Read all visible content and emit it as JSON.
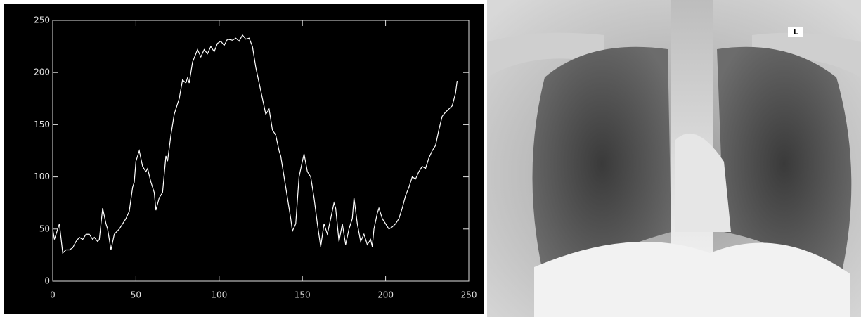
{
  "chart_data": {
    "type": "line",
    "x": [
      0,
      1,
      3,
      4,
      6,
      8,
      10,
      12,
      14,
      16,
      18,
      20,
      22,
      24,
      25,
      27,
      28,
      30,
      32,
      33,
      35,
      37,
      40,
      42,
      44,
      46,
      48,
      49,
      50,
      52,
      54,
      56,
      57,
      59,
      61,
      62,
      64,
      66,
      68,
      69,
      71,
      73,
      76,
      78,
      80,
      81,
      82,
      84,
      87,
      89,
      91,
      93,
      95,
      97,
      99,
      101,
      103,
      105,
      108,
      110,
      112,
      114,
      116,
      118,
      120,
      122,
      124,
      126,
      128,
      130,
      132,
      134,
      136,
      137,
      139,
      141,
      143,
      144,
      146,
      148,
      150,
      151,
      153,
      155,
      157,
      159,
      161,
      163,
      165,
      167,
      169,
      170,
      172,
      174,
      176,
      178,
      180,
      181,
      183,
      185,
      187,
      189,
      191,
      192,
      193,
      195,
      196,
      198,
      200,
      202,
      204,
      206,
      208,
      210,
      212,
      214,
      216,
      218,
      220,
      222,
      224,
      226,
      228,
      230,
      232,
      234,
      236,
      238,
      240,
      242,
      243
    ],
    "series": [
      {
        "color": "#ffffff",
        "values": [
          50,
          40,
          50,
          55,
          27,
          30,
          30,
          32,
          38,
          42,
          40,
          45,
          45,
          40,
          42,
          38,
          40,
          70,
          55,
          50,
          30,
          45,
          50,
          55,
          60,
          67,
          90,
          95,
          115,
          125,
          110,
          105,
          108,
          95,
          85,
          68,
          80,
          85,
          120,
          115,
          140,
          160,
          175,
          193,
          190,
          195,
          190,
          210,
          222,
          215,
          222,
          218,
          225,
          220,
          228,
          230,
          226,
          232,
          231,
          233,
          230,
          236,
          232,
          233,
          225,
          205,
          190,
          175,
          160,
          165,
          145,
          140,
          125,
          120,
          100,
          80,
          60,
          48,
          55,
          100,
          115,
          122,
          105,
          100,
          80,
          55,
          33,
          55,
          45,
          60,
          75,
          70,
          38,
          55,
          35,
          50,
          60,
          80,
          55,
          38,
          45,
          35,
          40,
          33,
          50,
          65,
          70,
          60,
          55,
          50,
          52,
          55,
          60,
          70,
          82,
          90,
          100,
          98,
          105,
          110,
          108,
          118,
          125,
          130,
          145,
          158,
          162,
          165,
          168,
          180,
          192
        ]
      }
    ],
    "xlim": [
      0,
      250
    ],
    "ylim": [
      0,
      250
    ],
    "xticks": [
      0,
      50,
      100,
      150,
      200,
      250
    ],
    "yticks": [
      0,
      50,
      100,
      150,
      200,
      250
    ]
  },
  "image_marker": "L"
}
